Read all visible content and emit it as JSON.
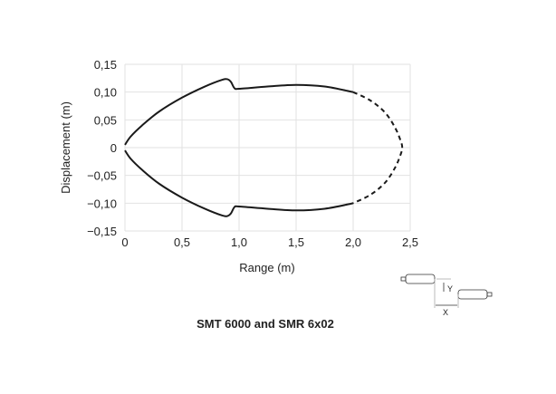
{
  "chart_data": {
    "type": "line",
    "title": "SMT 6000 and SMR 6x02",
    "xlabel": "Range (m)",
    "ylabel": "Displacement (m)",
    "xlim": [
      0,
      2.5
    ],
    "ylim": [
      -0.15,
      0.15
    ],
    "grid": true,
    "x_ticks": [
      "0",
      "0,5",
      "1,0",
      "1,5",
      "2,0",
      "2,5"
    ],
    "y_ticks": [
      "0,15",
      "0,10",
      "0,05",
      "0",
      "−0,05",
      "−0,10",
      "−0,15"
    ],
    "series": [
      {
        "style": "solid",
        "x": [
          0,
          0.05,
          0.15,
          0.3,
          0.5,
          0.7,
          0.85,
          0.9,
          0.93,
          0.96,
          1.0,
          1.25,
          1.5,
          1.75,
          2.0
        ],
        "y": [
          0.005,
          0.02,
          0.04,
          0.065,
          0.09,
          0.11,
          0.122,
          0.123,
          0.118,
          0.107,
          0.106,
          0.11,
          0.113,
          0.11,
          0.1
        ]
      },
      {
        "style": "dashed",
        "x": [
          2.0,
          2.15,
          2.28,
          2.37,
          2.42,
          2.43,
          2.42,
          2.37,
          2.28,
          2.15,
          2.0
        ],
        "y": [
          0.1,
          0.085,
          0.063,
          0.035,
          0.01,
          0,
          -0.01,
          -0.035,
          -0.063,
          -0.085,
          -0.1
        ]
      },
      {
        "style": "solid",
        "x": [
          0,
          0.05,
          0.15,
          0.3,
          0.5,
          0.7,
          0.85,
          0.9,
          0.93,
          0.96,
          1.0,
          1.25,
          1.5,
          1.75,
          2.0
        ],
        "y": [
          -0.005,
          -0.02,
          -0.04,
          -0.065,
          -0.09,
          -0.11,
          -0.122,
          -0.123,
          -0.118,
          -0.107,
          -0.106,
          -0.11,
          -0.113,
          -0.11,
          -0.1
        ]
      }
    ],
    "diagram_labels": {
      "x": "X",
      "y": "Y"
    },
    "line_color": "#1a1a1a",
    "grid_color": "#e2e2e2"
  }
}
